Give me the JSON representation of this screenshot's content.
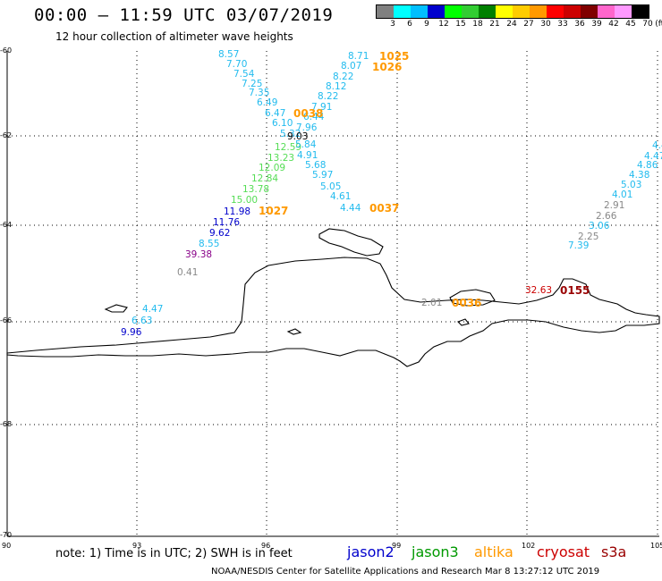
{
  "title": "00:00 – 11:59 UTC 03/07/2019",
  "subtitle": "12 hour collection of altimeter wave heights",
  "legend": {
    "unit": "(ft)",
    "ticks": [
      "3",
      "6",
      "9",
      "12",
      "15",
      "18",
      "21",
      "24",
      "27",
      "30",
      "33",
      "36",
      "39",
      "42",
      "45",
      "70"
    ],
    "colors": [
      "#808080",
      "#00ffff",
      "#00bfff",
      "#0000cd",
      "#00ff00",
      "#32cd32",
      "#008000",
      "#ffff00",
      "#ffcc00",
      "#ff9900",
      "#ff0000",
      "#cc0000",
      "#800000",
      "#ff66cc",
      "#ff99ff",
      "#000000"
    ]
  },
  "axes": {
    "lat_labels": [
      "-60",
      "-62",
      "-64",
      "-66",
      "-68",
      "-70"
    ],
    "lon_labels": [
      "90",
      "93",
      "96",
      "99",
      "102",
      "105"
    ]
  },
  "points": [
    {
      "t": "8.57",
      "c": "#22bbee"
    },
    {
      "t": "7.70",
      "c": "#22bbee"
    },
    {
      "t": "7.54",
      "c": "#22bbee"
    },
    {
      "t": "7.25",
      "c": "#22bbee"
    },
    {
      "t": "7.35",
      "c": "#22bbee"
    },
    {
      "t": "6.49",
      "c": "#22bbee"
    },
    {
      "t": "6.47",
      "c": "#22bbee"
    },
    {
      "t": "6.10",
      "c": "#22bbee"
    },
    {
      "t": "5.32",
      "c": "#22bbee"
    },
    {
      "t": "12.59",
      "c": "#55dd55"
    },
    {
      "t": "13.23",
      "c": "#55dd55"
    },
    {
      "t": "12.09",
      "c": "#55dd55"
    },
    {
      "t": "12.84",
      "c": "#55dd55"
    },
    {
      "t": "13.78",
      "c": "#55dd55"
    },
    {
      "t": "15.00",
      "c": "#55dd55"
    },
    {
      "t": "11.98",
      "c": "#0000cc"
    },
    {
      "t": "11.76",
      "c": "#0000cc"
    },
    {
      "t": "9.62",
      "c": "#0000cc"
    },
    {
      "t": "8.55",
      "c": "#22bbee"
    },
    {
      "t": "39.38",
      "c": "#880088"
    },
    {
      "t": "0.41",
      "c": "#888888"
    },
    {
      "t": "8.71",
      "c": "#22bbee"
    },
    {
      "t": "8.07",
      "c": "#22bbee"
    },
    {
      "t": "8.22",
      "c": "#22bbee"
    },
    {
      "t": "8.12",
      "c": "#22bbee"
    },
    {
      "t": "8.22",
      "c": "#22bbee"
    },
    {
      "t": "7.91",
      "c": "#22bbee"
    },
    {
      "t": "6.44",
      "c": "#22bbee"
    },
    {
      "t": "7.96",
      "c": "#22bbee"
    },
    {
      "t": "9.03",
      "c": "#000000"
    },
    {
      "t": "5.84",
      "c": "#22bbee"
    },
    {
      "t": "4.91",
      "c": "#22bbee"
    },
    {
      "t": "5.68",
      "c": "#22bbee"
    },
    {
      "t": "5.97",
      "c": "#22bbee"
    },
    {
      "t": "5.05",
      "c": "#22bbee"
    },
    {
      "t": "4.61",
      "c": "#22bbee"
    },
    {
      "t": "4.44",
      "c": "#22bbee"
    },
    {
      "t": "4.47",
      "c": "#22bbee"
    },
    {
      "t": "6.63",
      "c": "#22bbee"
    },
    {
      "t": "9.96",
      "c": "#0000cc"
    },
    {
      "t": "2.01",
      "c": "#888888"
    },
    {
      "t": "32.63",
      "c": "#cc0000"
    },
    {
      "t": "4.4",
      "c": "#22bbee"
    },
    {
      "t": "4.47",
      "c": "#22bbee"
    },
    {
      "t": "4.86",
      "c": "#22bbee"
    },
    {
      "t": "4.38",
      "c": "#22bbee"
    },
    {
      "t": "5.03",
      "c": "#22bbee"
    },
    {
      "t": "4.01",
      "c": "#22bbee"
    },
    {
      "t": "2.91",
      "c": "#888888"
    },
    {
      "t": "2.66",
      "c": "#888888"
    },
    {
      "t": "3.06",
      "c": "#22bbee"
    },
    {
      "t": "2.25",
      "c": "#888888"
    },
    {
      "t": "7.39",
      "c": "#22bbee"
    }
  ],
  "pass_times": [
    {
      "t": "1025",
      "c": "#ff9900"
    },
    {
      "t": "1026",
      "c": "#ff9900"
    },
    {
      "t": "0038",
      "c": "#ff9900"
    },
    {
      "t": "1027",
      "c": "#ff9900"
    },
    {
      "t": "0037",
      "c": "#ff9900"
    },
    {
      "t": "0036",
      "c": "#ff9900"
    },
    {
      "t": "0155",
      "c": "#990000"
    }
  ],
  "note": "note: 1) Time is in UTC; 2) SWH is in feet",
  "satellites": [
    {
      "name": "jason2",
      "color": "#0000cc"
    },
    {
      "name": "jason3",
      "color": "#009900"
    },
    {
      "name": "altika",
      "color": "#ff9900"
    },
    {
      "name": "cryosat",
      "color": "#cc0000"
    },
    {
      "name": "s3a",
      "color": "#990000"
    }
  ],
  "credit": "NOAA/NESDIS Center for Satellite Applications and Research    Mar  8 13:27:12 UTC 2019"
}
